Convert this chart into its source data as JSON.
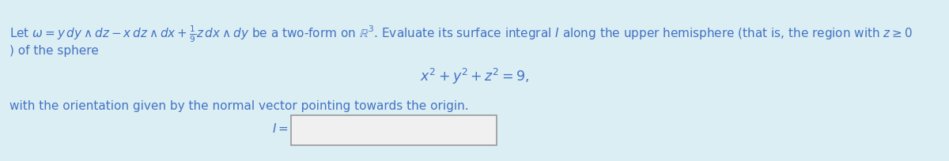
{
  "background_color": "#daeef3",
  "text_color": "#4472c4",
  "line1": "Let $\\omega = y\\,dy \\wedge dz - x\\,dz \\wedge dx + \\frac{1}{9}z\\,dx \\wedge dy$ be a two-form on $\\mathbb{R}^3$. Evaluate its surface integral $I$ along the upper hemisphere (that is, the region with $z \\geq 0$",
  "line2": ") of the sphere",
  "line3": "$x^2 + y^2 + z^2 = 9,$",
  "line4": "with the orientation given by the normal vector pointing towards the origin.",
  "line5_label": "$I = $",
  "input_box_facecolor": "#f0f0f0",
  "input_box_edgecolor": "#999999",
  "fontsize": 11.0,
  "eq_fontsize": 12.5
}
